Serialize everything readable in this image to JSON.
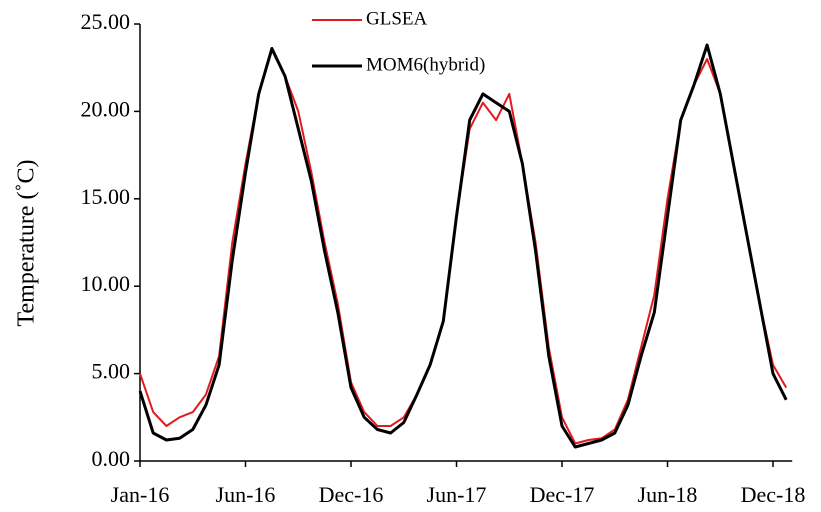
{
  "chart_data": {
    "type": "line",
    "ylabel": "Temperature (˚C)",
    "categories": [
      "Jan-16",
      null,
      null,
      null,
      null,
      null,
      null,
      null,
      "Jun-16",
      null,
      null,
      null,
      null,
      null,
      null,
      null,
      "Dec-16",
      null,
      null,
      null,
      null,
      null,
      null,
      null,
      "Jun-17",
      null,
      null,
      null,
      null,
      null,
      null,
      null,
      "Dec-17",
      null,
      null,
      null,
      null,
      null,
      null,
      null,
      "Jun-18",
      null,
      null,
      null,
      null,
      null,
      null,
      null,
      "Dec-18",
      null
    ],
    "series": [
      {
        "name": "GLSEA",
        "color": "#e31a1c",
        "values": [
          5.0,
          2.8,
          2.0,
          2.5,
          2.8,
          3.8,
          6.0,
          12.5,
          17.0,
          21.0,
          23.5,
          22.0,
          20.0,
          16.5,
          12.5,
          9.0,
          4.5,
          2.8,
          2.0,
          2.0,
          2.5,
          3.8,
          5.5,
          8.0,
          14.0,
          19.0,
          20.5,
          19.5,
          21.0,
          17.0,
          12.5,
          6.5,
          2.5,
          1.0,
          1.2,
          1.3,
          1.8,
          3.5,
          6.5,
          9.5,
          15.0,
          19.5,
          21.5,
          23.0,
          21.0,
          17.0,
          13.0,
          9.0,
          5.5,
          4.2
        ]
      },
      {
        "name": "MOM6(hybrid)",
        "color": "#000000",
        "values": [
          4.0,
          1.6,
          1.2,
          1.3,
          1.8,
          3.2,
          5.5,
          11.5,
          16.5,
          21.0,
          23.6,
          22.0,
          19.0,
          16.0,
          12.0,
          8.5,
          4.2,
          2.5,
          1.8,
          1.6,
          2.2,
          3.8,
          5.5,
          8.0,
          14.0,
          19.5,
          21.0,
          20.5,
          20.0,
          17.0,
          12.0,
          6.0,
          2.0,
          0.8,
          1.0,
          1.2,
          1.6,
          3.2,
          6.0,
          8.5,
          14.0,
          19.5,
          21.5,
          23.8,
          21.0,
          17.0,
          13.0,
          9.0,
          5.0,
          3.5
        ]
      }
    ],
    "ylim": [
      0,
      25
    ],
    "yticks": [
      {
        "value": 0,
        "label": "0.00"
      },
      {
        "value": 5,
        "label": "5.00"
      },
      {
        "value": 10,
        "label": "10.00"
      },
      {
        "value": 15,
        "label": "15.00"
      },
      {
        "value": 20,
        "label": "20.00"
      },
      {
        "value": 25,
        "label": "25.00"
      }
    ],
    "grid": false
  }
}
